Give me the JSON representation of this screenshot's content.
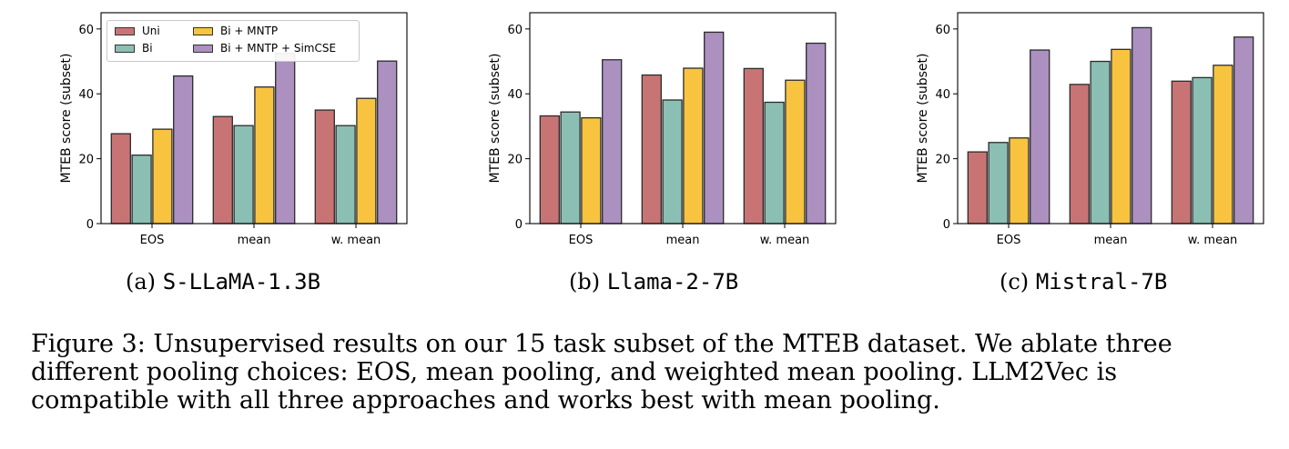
{
  "chart_data": [
    {
      "type": "bar",
      "subtitle_label": "(a)",
      "subtitle_model": "S-LLaMA-1.3B",
      "ylabel": "MTEB score (subset)",
      "ylim": [
        0,
        65
      ],
      "yticks": [
        "0",
        "20",
        "40",
        "60"
      ],
      "categories": [
        "EOS",
        "mean",
        "w. mean"
      ],
      "legend_position": "top-left",
      "series": [
        {
          "name": "Uni",
          "color": "#c87475",
          "values": [
            27.7,
            33.0,
            35.0
          ]
        },
        {
          "name": "Bi",
          "color": "#8cbfb4",
          "values": [
            21.1,
            30.2,
            30.2
          ]
        },
        {
          "name": "Bi + MNTP",
          "color": "#f8c440",
          "values": [
            29.1,
            42.1,
            38.6
          ]
        },
        {
          "name": "Bi + MNTP + SimCSE",
          "color": "#ab90c0",
          "values": [
            45.5,
            52.5,
            50.1
          ]
        }
      ]
    },
    {
      "type": "bar",
      "subtitle_label": "(b)",
      "subtitle_model": "Llama-2-7B",
      "ylabel": "MTEB score (subset)",
      "ylim": [
        0,
        65
      ],
      "yticks": [
        "0",
        "20",
        "40",
        "60"
      ],
      "categories": [
        "EOS",
        "mean",
        "w. mean"
      ],
      "series": [
        {
          "color": "#c87475",
          "values": [
            33.2,
            45.8,
            47.8
          ]
        },
        {
          "color": "#8cbfb4",
          "values": [
            34.4,
            38.1,
            37.4
          ]
        },
        {
          "color": "#f8c440",
          "values": [
            32.6,
            47.9,
            44.2
          ]
        },
        {
          "color": "#ab90c0",
          "values": [
            50.5,
            59.0,
            55.6
          ]
        }
      ]
    },
    {
      "type": "bar",
      "subtitle_label": "(c)",
      "subtitle_model": "Mistral-7B",
      "ylabel": "MTEB score (subset)",
      "ylim": [
        0,
        65
      ],
      "yticks": [
        "0",
        "20",
        "40",
        "60"
      ],
      "categories": [
        "EOS",
        "mean",
        "w. mean"
      ],
      "series": [
        {
          "color": "#c87475",
          "values": [
            22.1,
            42.9,
            43.9
          ]
        },
        {
          "color": "#8cbfb4",
          "values": [
            25.0,
            50.0,
            45.0
          ]
        },
        {
          "color": "#f8c440",
          "values": [
            26.4,
            53.7,
            48.8
          ]
        },
        {
          "color": "#ab90c0",
          "values": [
            53.5,
            60.4,
            57.5
          ]
        }
      ]
    }
  ],
  "caption_lines": [
    "Figure 3: Unsupervised results on our 15 task subset of the MTEB dataset. We ablate three",
    "different pooling choices: EOS, mean pooling, and weighted mean pooling. LLM2Vec is",
    "compatible with all three approaches and works best with mean pooling."
  ]
}
